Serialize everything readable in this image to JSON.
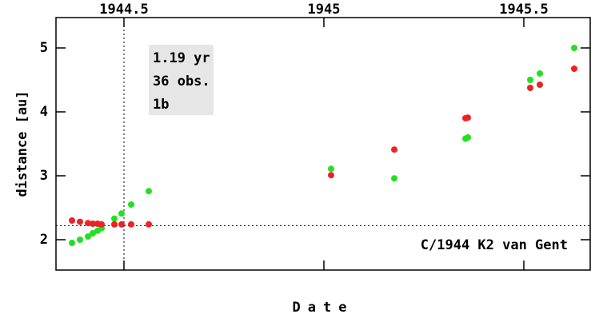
{
  "chart_data": {
    "type": "scatter",
    "title": "C/1944 K2 van Gent",
    "info": [
      "1.19 yr",
      "36 obs.",
      "1b"
    ],
    "x_label": "Date",
    "y_label": "distance [au]",
    "xlim": [
      1944.33,
      1945.666
    ],
    "xticks": [
      1944.5,
      1945,
      1945.5
    ],
    "ylim": [
      1.525,
      5.475
    ],
    "yticks": [
      2,
      3,
      4,
      5
    ],
    "hline": 2.22,
    "vline": 1944.5,
    "series": [
      {
        "color": "#22e022",
        "x": [
          1944.37,
          1944.39,
          1944.41,
          1944.422,
          1944.434,
          1944.444,
          1944.476,
          1944.494,
          1944.518,
          1944.562,
          1945.018,
          1945.176,
          1945.354,
          1945.36,
          1945.516,
          1945.54,
          1945.626
        ],
        "values": [
          1.95,
          2.0,
          2.05,
          2.1,
          2.14,
          2.18,
          2.33,
          2.41,
          2.55,
          2.76,
          3.11,
          2.96,
          3.58,
          3.6,
          4.5,
          4.6,
          5.0
        ]
      },
      {
        "color": "#ee2222",
        "x": [
          1944.37,
          1944.39,
          1944.41,
          1944.422,
          1944.434,
          1944.444,
          1944.476,
          1944.494,
          1944.518,
          1944.562,
          1945.018,
          1945.176,
          1945.354,
          1945.36,
          1945.516,
          1945.54,
          1945.626
        ],
        "values": [
          2.3,
          2.28,
          2.26,
          2.25,
          2.25,
          2.24,
          2.24,
          2.24,
          2.24,
          2.24,
          3.01,
          3.41,
          3.9,
          3.91,
          4.375,
          4.425,
          4.675
        ]
      }
    ]
  }
}
